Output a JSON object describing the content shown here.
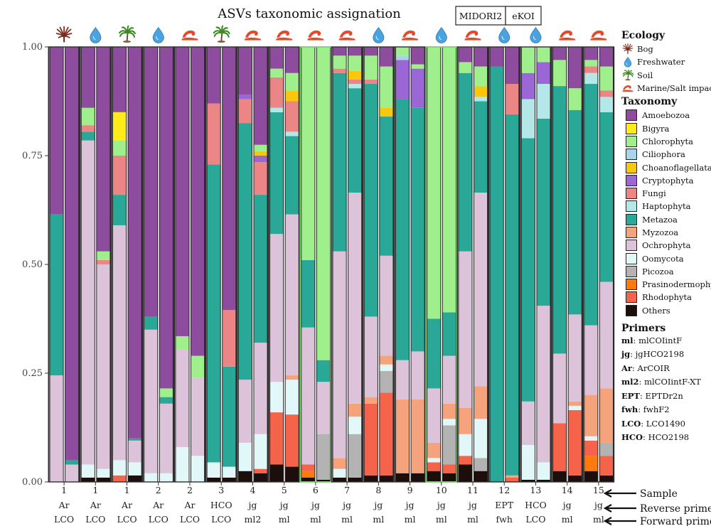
{
  "title": "ASVs taxonomic assignation",
  "db_labels": [
    "MIDORI2",
    "eKOI"
  ],
  "colors": {
    "Amoebozoa": "#8e4c9e",
    "Bigyra": "#ffeb1a",
    "Chlorophyta": "#9ff08c",
    "Ciliophora": "#a8d4ea",
    "Choanoflagellata": "#f7c80c",
    "Cryptophyta": "#9b67d6",
    "Fungi": "#ec8585",
    "Haptophyta": "#b4e8e8",
    "Metazoa": "#2aa897",
    "Myzozoa": "#f5a37c",
    "Ochrophyta": "#dcc3da",
    "Oomycota": "#e2f7f7",
    "Picozoa": "#b3b3b3",
    "Prasinodermophyta": "#ff7a0c",
    "Rhodophyta": "#f4634a",
    "Others": "#1c0f0b"
  },
  "ecology": {
    "heading": "Ecology",
    "items": [
      {
        "key": "bog",
        "label": "Bog",
        "icon": "bog-icon"
      },
      {
        "key": "freshwater",
        "label": "Freshwater",
        "icon": "water-drop-icon"
      },
      {
        "key": "soil",
        "label": "Soil",
        "icon": "palm-tree-icon"
      },
      {
        "key": "marine",
        "label": "Marine/Salt impacted",
        "icon": "wave-icon"
      }
    ]
  },
  "taxonomy": {
    "heading": "Taxonomy",
    "items": [
      "Amoebozoa",
      "Bigyra",
      "Chlorophyta",
      "Ciliophora",
      "Choanoflagellata",
      "Cryptophyta",
      "Fungi",
      "Haptophyta",
      "Metazoa",
      "Myzozoa",
      "Ochrophyta",
      "Oomycota",
      "Picozoa",
      "Prasinodermophyta",
      "Rhodophyta",
      "Others"
    ]
  },
  "primers": {
    "heading": "Primers",
    "items": [
      {
        "code": "ml",
        "name": "mlCOIintF"
      },
      {
        "code": "jg",
        "name": "jgHCO2198"
      },
      {
        "code": "Ar",
        "name": "ArCOIR"
      },
      {
        "code": "ml2",
        "name": "mlCOIintF-XT"
      },
      {
        "code": "EPT",
        "name": "EPTDr2n"
      },
      {
        "code": "fwh",
        "name": "fwhF2"
      },
      {
        "code": "LCO",
        "name": "LCO1490"
      },
      {
        "code": "HCO",
        "name": "HCO2198"
      }
    ]
  },
  "row_labels": {
    "sample": "Sample",
    "reverse": "Reverse primer",
    "forward": "Forward primer"
  },
  "chart_data": {
    "type": "bar",
    "stacked": true,
    "title": "ASVs taxonomic assignation",
    "ylim": [
      0,
      1
    ],
    "yticks": [
      "0.00",
      "0.25",
      "0.50",
      "0.75",
      "1.00"
    ],
    "series_order": [
      "Others",
      "Prasinodermophyta",
      "Rhodophyta",
      "Picozoa",
      "Oomycota",
      "Myzozoa",
      "Ochrophyta",
      "Metazoa",
      "Haptophyta",
      "Fungi",
      "Cryptophyta",
      "Ciliophora",
      "Choanoflagellata",
      "Chlorophyta",
      "Bigyra",
      "Amoebozoa"
    ],
    "groups": [
      {
        "sample": "1",
        "reverse": "Ar",
        "forward": "LCO",
        "ecology": "bog",
        "highlight": false,
        "bars": [
          {
            "Ochrophyta": 0.245,
            "Metazoa": 0.37,
            "Amoebozoa": 0.385
          },
          {
            "Ochrophyta": 0.04,
            "Metazoa": 0.01,
            "Amoebozoa": 0.95
          }
        ]
      },
      {
        "sample": "1",
        "reverse": "Ar",
        "forward": "LCO",
        "ecology": "freshwater",
        "highlight": false,
        "bars": [
          {
            "Others": 0.01,
            "Oomycota": 0.03,
            "Ochrophyta": 0.745,
            "Metazoa": 0.02,
            "Fungi": 0.015,
            "Chlorophyta": 0.04,
            "Amoebozoa": 0.14
          },
          {
            "Others": 0.01,
            "Oomycota": 0.02,
            "Ochrophyta": 0.47,
            "Fungi": 0.01,
            "Chlorophyta": 0.02,
            "Amoebozoa": 0.47
          }
        ]
      },
      {
        "sample": "1",
        "reverse": "Ar",
        "forward": "LCO",
        "ecology": "soil",
        "highlight": false,
        "bars": [
          {
            "Rhodophyta": 0.015,
            "Oomycota": 0.035,
            "Ochrophyta": 0.54,
            "Metazoa": 0.07,
            "Fungi": 0.09,
            "Chlorophyta": 0.035,
            "Bigyra": 0.065,
            "Amoebozoa": 0.15
          },
          {
            "Others": 0.015,
            "Oomycota": 0.03,
            "Ochrophyta": 0.05,
            "Metazoa": 0.005,
            "Amoebozoa": 0.9
          }
        ]
      },
      {
        "sample": "2",
        "reverse": "Ar",
        "forward": "LCO",
        "ecology": "freshwater",
        "highlight": false,
        "bars": [
          {
            "Oomycota": 0.02,
            "Ochrophyta": 0.33,
            "Metazoa": 0.03,
            "Amoebozoa": 0.62
          },
          {
            "Oomycota": 0.02,
            "Ochrophyta": 0.16,
            "Metazoa": 0.015,
            "Chlorophyta": 0.02,
            "Amoebozoa": 0.785
          }
        ]
      },
      {
        "sample": "2",
        "reverse": "Ar",
        "forward": "LCO",
        "ecology": "marine",
        "highlight": false,
        "bars": [
          {
            "Oomycota": 0.08,
            "Ochrophyta": 0.225,
            "Chlorophyta": 0.03,
            "Amoebozoa": 0.665
          },
          {
            "Oomycota": 0.06,
            "Ochrophyta": 0.18,
            "Chlorophyta": 0.05,
            "Amoebozoa": 0.71
          }
        ]
      },
      {
        "sample": "3",
        "reverse": "HCO",
        "forward": "LCO",
        "ecology": "soil",
        "highlight": false,
        "bars": [
          {
            "Others": 0.01,
            "Oomycota": 0.035,
            "Metazoa": 0.685,
            "Fungi": 0.14,
            "Amoebozoa": 0.13
          },
          {
            "Others": 0.01,
            "Oomycota": 0.025,
            "Metazoa": 0.23,
            "Fungi": 0.13,
            "Amoebozoa": 0.605
          }
        ]
      },
      {
        "sample": "4",
        "reverse": "jg",
        "forward": "ml2",
        "ecology": "marine",
        "highlight": false,
        "bars": [
          {
            "Others": 0.025,
            "Oomycota": 0.065,
            "Ochrophyta": 0.145,
            "Metazoa": 0.59,
            "Fungi": 0.055,
            "Cryptophyta": 0.01,
            "Amoebozoa": 0.11
          },
          {
            "Others": 0.02,
            "Rhodophyta": 0.01,
            "Oomycota": 0.08,
            "Ochrophyta": 0.21,
            "Metazoa": 0.34,
            "Fungi": 0.075,
            "Cryptophyta": 0.015,
            "Choanoflagellata": 0.01,
            "Chlorophyta": 0.015,
            "Amoebozoa": 0.225
          }
        ]
      },
      {
        "sample": "5",
        "reverse": "jg",
        "forward": "ml",
        "ecology": "marine",
        "highlight": false,
        "bars": [
          {
            "Others": 0.04,
            "Rhodophyta": 0.12,
            "Oomycota": 0.07,
            "Ochrophyta": 0.34,
            "Metazoa": 0.28,
            "Haptophyta": 0.01,
            "Fungi": 0.07,
            "Chlorophyta": 0.02,
            "Amoebozoa": 0.05
          },
          {
            "Others": 0.035,
            "Rhodophyta": 0.12,
            "Oomycota": 0.08,
            "Ochrophyta": 0.37,
            "Myzozoa": 0.01,
            "Metazoa": 0.18,
            "Haptophyta": 0.01,
            "Fungi": 0.07,
            "Choanoflagellata": 0.025,
            "Chlorophyta": 0.04,
            "Amoebozoa": 0.06
          }
        ]
      },
      {
        "sample": "6",
        "reverse": "jg",
        "forward": "ml",
        "ecology": "marine",
        "highlight": true,
        "bars": [
          {
            "Others": 0.01,
            "Prasinodermophyta": 0.015,
            "Rhodophyta": 0.015,
            "Ochrophyta": 0.315,
            "Metazoa": 0.155,
            "Chlorophyta": 0.49
          },
          {
            "Others": 0.005,
            "Picozoa": 0.105,
            "Ochrophyta": 0.12,
            "Metazoa": 0.05,
            "Chlorophyta": 0.72
          }
        ]
      },
      {
        "sample": "7",
        "reverse": "jg",
        "forward": "ml",
        "ecology": "marine",
        "highlight": false,
        "bars": [
          {
            "Others": 0.01,
            "Oomycota": 0.02,
            "Ochrophyta": 0.475,
            "Myzozoa": 0.025,
            "Metazoa": 0.41,
            "Fungi": 0.01,
            "Chlorophyta": 0.03,
            "Amoebozoa": 0.02
          },
          {
            "Others": 0.01,
            "Picozoa": 0.1,
            "Oomycota": 0.04,
            "Ochrophyta": 0.485,
            "Myzozoa": 0.03,
            "Metazoa": 0.24,
            "Haptophyta": 0.01,
            "Fungi": 0.01,
            "Choanoflagellata": 0.02,
            "Chlorophyta": 0.035,
            "Amoebozoa": 0.02
          }
        ]
      },
      {
        "sample": "8",
        "reverse": "jg",
        "forward": "ml",
        "ecology": "freshwater",
        "highlight": false,
        "bars": [
          {
            "Others": 0.015,
            "Rhodophyta": 0.165,
            "Ochrophyta": 0.185,
            "Myzozoa": 0.015,
            "Metazoa": 0.535,
            "Fungi": 0.01,
            "Chlorophyta": 0.055,
            "Amoebozoa": 0.02
          },
          {
            "Others": 0.015,
            "Rhodophyta": 0.19,
            "Picozoa": 0.05,
            "Oomycota": 0.015,
            "Ochrophyta": 0.23,
            "Myzozoa": 0.02,
            "Metazoa": 0.32,
            "Choanoflagellata": 0.02,
            "Chlorophyta": 0.095,
            "Amoebozoa": 0.045
          }
        ]
      },
      {
        "sample": "9",
        "reverse": "jg",
        "forward": "ml",
        "ecology": "marine",
        "highlight": false,
        "bars": [
          {
            "Others": 0.02,
            "Ochrophyta": 0.09,
            "Myzozoa": 0.17,
            "Metazoa": 0.6,
            "Cryptophyta": 0.09,
            "Ciliophora": 0.01,
            "Chlorophyta": 0.02
          },
          {
            "Others": 0.02,
            "Ochrophyta": 0.11,
            "Myzozoa": 0.17,
            "Metazoa": 0.56,
            "Cryptophyta": 0.09,
            "Chlorophyta": 0.01,
            "Amoebozoa": 0.04
          }
        ]
      },
      {
        "sample": "10",
        "reverse": "jg",
        "forward": "ml",
        "ecology": "freshwater",
        "highlight": true,
        "bars": [
          {
            "Others": 0.025,
            "Rhodophyta": 0.02,
            "Oomycota": 0.01,
            "Ochrophyta": 0.125,
            "Myzozoa": 0.035,
            "Metazoa": 0.16,
            "Chlorophyta": 0.625
          },
          {
            "Others": 0.02,
            "Rhodophyta": 0.02,
            "Picozoa": 0.09,
            "Oomycota": 0.015,
            "Ochrophyta": 0.11,
            "Myzozoa": 0.035,
            "Metazoa": 0.1,
            "Chlorophyta": 0.61
          }
        ]
      },
      {
        "sample": "11",
        "reverse": "jg",
        "forward": "ml",
        "ecology": "marine",
        "highlight": false,
        "bars": [
          {
            "Others": 0.04,
            "Rhodophyta": 0.02,
            "Oomycota": 0.05,
            "Ochrophyta": 0.36,
            "Myzozoa": 0.06,
            "Metazoa": 0.41,
            "Chlorophyta": 0.025,
            "Amoebozoa": 0.035
          },
          {
            "Others": 0.025,
            "Picozoa": 0.03,
            "Oomycota": 0.09,
            "Ochrophyta": 0.445,
            "Myzozoa": 0.075,
            "Metazoa": 0.21,
            "Haptophyta": 0.01,
            "Choanoflagellata": 0.025,
            "Chlorophyta": 0.045,
            "Amoebozoa": 0.045
          }
        ]
      },
      {
        "sample": "12",
        "reverse": "EPT",
        "forward": "fwh",
        "ecology": "freshwater",
        "highlight": false,
        "bars": [
          {
            "Metazoa": 0.955,
            "Amoebozoa": 0.045
          },
          {
            "Rhodophyta": 0.01,
            "Myzozoa": 0.005,
            "Metazoa": 0.83,
            "Fungi": 0.07,
            "Amoebozoa": 0.085
          }
        ]
      },
      {
        "sample": "13",
        "reverse": "HCO",
        "forward": "LCO",
        "ecology": "freshwater",
        "highlight": false,
        "bars": [
          {
            "Others": 0.005,
            "Oomycota": 0.08,
            "Ochrophyta": 0.1,
            "Metazoa": 0.605,
            "Haptophyta": 0.09,
            "Cryptophyta": 0.06,
            "Chlorophyta": 0.06
          },
          {
            "Others": 0.005,
            "Oomycota": 0.04,
            "Ochrophyta": 0.36,
            "Metazoa": 0.43,
            "Haptophyta": 0.08,
            "Cryptophyta": 0.05,
            "Chlorophyta": 0.035
          }
        ]
      },
      {
        "sample": "14",
        "reverse": "jg",
        "forward": "ml",
        "ecology": "marine",
        "highlight": false,
        "bars": [
          {
            "Others": 0.025,
            "Rhodophyta": 0.11,
            "Ochrophyta": 0.16,
            "Metazoa": 0.615,
            "Chlorophyta": 0.06,
            "Amoebozoa": 0.03
          },
          {
            "Others": 0.015,
            "Rhodophyta": 0.15,
            "Oomycota": 0.01,
            "Ochrophyta": 0.2,
            "Myzozoa": 0.01,
            "Metazoa": 0.47,
            "Chlorophyta": 0.05,
            "Amoebozoa": 0.095
          }
        ]
      },
      {
        "sample": "15",
        "reverse": "jg",
        "forward": "ml",
        "ecology": "marine",
        "highlight": false,
        "bars": [
          {
            "Others": 0.025,
            "Rhodophyta": 0.035,
            "Prasinodermophyta": 0.035,
            "Oomycota": 0.01,
            "Ochrophyta": 0.16,
            "Myzozoa": 0.095,
            "Metazoa": 0.555,
            "Haptophyta": 0.025,
            "Fungi": 0.015,
            "Chlorophyta": 0.015,
            "Amoebozoa": 0.03
          },
          {
            "Others": 0.015,
            "Rhodophyta": 0.045,
            "Picozoa": 0.03,
            "Ochrophyta": 0.245,
            "Myzozoa": 0.125,
            "Metazoa": 0.39,
            "Haptophyta": 0.035,
            "Fungi": 0.015,
            "Chlorophyta": 0.055,
            "Amoebozoa": 0.045
          }
        ]
      }
    ]
  }
}
